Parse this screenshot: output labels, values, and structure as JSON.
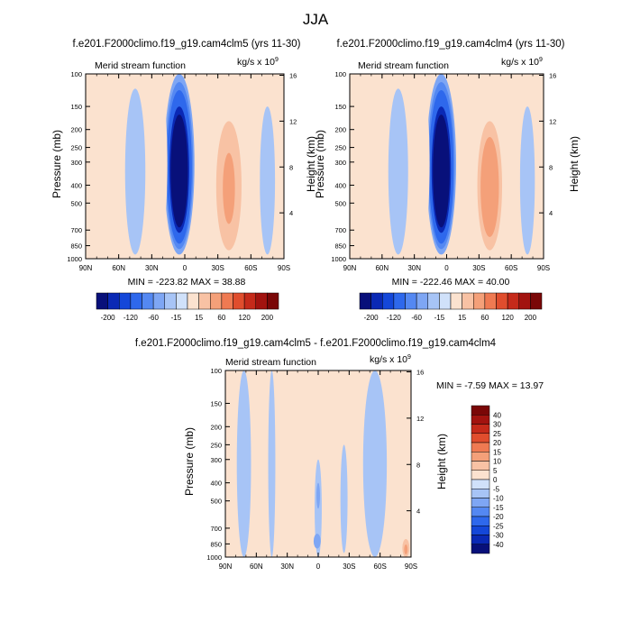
{
  "title": "JJA",
  "colors": {
    "neg": [
      "#08107a",
      "#0a29b5",
      "#1447d9",
      "#2e68ec",
      "#5488f2",
      "#7ea6f4",
      "#a7c4f6",
      "#d0e1fa"
    ],
    "pos": [
      "#fbe2cf",
      "#f8c2a4",
      "#f4a079",
      "#ef7a52",
      "#e04d2d",
      "#c52a1a",
      "#a2130f",
      "#7a0707"
    ],
    "diff_neg": [
      "#08107a",
      "#0a29b5",
      "#1447d9",
      "#2e68ec",
      "#5488f2",
      "#7ea6f4",
      "#a7c4f6",
      "#d0e1fa"
    ],
    "diff_pos": [
      "#fbe2cf",
      "#f8c2a4",
      "#f4a079",
      "#ef7a52",
      "#e04d2d",
      "#c52a1a",
      "#a2130f",
      "#7a0707"
    ]
  },
  "chart_data": [
    {
      "id": "panel-clm5",
      "type": "heatmap",
      "title": "f.e201.F2000climo.f19_g19.cam4clm5 (yrs 11-30)",
      "left_label": "Merid stream function",
      "units_text": "kg/s x 10",
      "units_exp": "9",
      "ylabel": "Pressure (mb)",
      "y2label": "Height (km)",
      "x_ticks": [
        "90N",
        "60N",
        "30N",
        "0",
        "30S",
        "60S",
        "90S"
      ],
      "y_ticks": [
        "100",
        "150",
        "200",
        "250",
        "300",
        "400",
        "500",
        "700",
        "850",
        "1000"
      ],
      "y_tick_values": [
        100,
        150,
        200,
        250,
        300,
        400,
        500,
        700,
        850,
        1000
      ],
      "y2_ticks": [
        "16",
        "12",
        "8",
        "4"
      ],
      "y2_tick_values": [
        16,
        12,
        8,
        4
      ],
      "xlim": [
        -90,
        90
      ],
      "ylim_pressure": [
        100,
        1000
      ],
      "min": -223.82,
      "max": 38.88,
      "stats_text": "MIN = -223.82  MAX = 38.88",
      "colorbar_labels": [
        "-200",
        "-120",
        "-60",
        "-15",
        "15",
        "60",
        "120",
        "200"
      ],
      "features": [
        {
          "type": "cell",
          "lat": 5,
          "p_top": 100,
          "p_bot": 950,
          "value": -223.8,
          "half_width": 12
        },
        {
          "type": "cell",
          "lat": -40,
          "p_top": 180,
          "p_bot": 900,
          "value": 38.9,
          "half_width": 10
        },
        {
          "type": "cell",
          "lat": 45,
          "p_top": 120,
          "p_bot": 950,
          "value": -8,
          "half_width": 8
        },
        {
          "type": "cell",
          "lat": -75,
          "p_top": 150,
          "p_bot": 950,
          "value": -6,
          "half_width": 6
        },
        {
          "type": "cell",
          "lat": 25,
          "p_top": 100,
          "p_bot": 950,
          "value": 6,
          "half_width": 8
        },
        {
          "type": "cell",
          "lat": -60,
          "p_top": 120,
          "p_bot": 1000,
          "value": 5,
          "half_width": 7
        }
      ],
      "background_value": 3
    },
    {
      "id": "panel-clm4",
      "type": "heatmap",
      "title": "f.e201.F2000climo.f19_g19.cam4clm4 (yrs 11-30)",
      "left_label": "Merid stream function",
      "units_text": "kg/s x 10",
      "units_exp": "9",
      "ylabel": "Pressure (mb)",
      "y2label": "Height (km)",
      "x_ticks": [
        "90N",
        "60N",
        "30N",
        "0",
        "30S",
        "60S",
        "90S"
      ],
      "y_ticks": [
        "100",
        "150",
        "200",
        "250",
        "300",
        "400",
        "500",
        "700",
        "850",
        "1000"
      ],
      "y_tick_values": [
        100,
        150,
        200,
        250,
        300,
        400,
        500,
        700,
        850,
        1000
      ],
      "y2_ticks": [
        "16",
        "12",
        "8",
        "4"
      ],
      "y2_tick_values": [
        16,
        12,
        8,
        4
      ],
      "xlim": [
        -90,
        90
      ],
      "ylim_pressure": [
        100,
        1000
      ],
      "min": -222.46,
      "max": 40.0,
      "stats_text": "MIN = -222.46  MAX = 40.00",
      "colorbar_labels": [
        "-200",
        "-120",
        "-60",
        "-15",
        "15",
        "60",
        "120",
        "200"
      ],
      "features": [
        {
          "type": "cell",
          "lat": 5,
          "p_top": 100,
          "p_bot": 950,
          "value": -222.5,
          "half_width": 12
        },
        {
          "type": "cell",
          "lat": -40,
          "p_top": 180,
          "p_bot": 900,
          "value": 40.0,
          "half_width": 10
        },
        {
          "type": "cell",
          "lat": 45,
          "p_top": 120,
          "p_bot": 950,
          "value": -8,
          "half_width": 8
        },
        {
          "type": "cell",
          "lat": -75,
          "p_top": 150,
          "p_bot": 950,
          "value": -6,
          "half_width": 6
        },
        {
          "type": "cell",
          "lat": 25,
          "p_top": 100,
          "p_bot": 950,
          "value": 6,
          "half_width": 8
        },
        {
          "type": "cell",
          "lat": -60,
          "p_top": 120,
          "p_bot": 1000,
          "value": 5,
          "half_width": 7
        }
      ],
      "background_value": 3
    },
    {
      "id": "panel-diff",
      "type": "heatmap",
      "title": "f.e201.F2000climo.f19_g19.cam4clm5 - f.e201.F2000climo.f19_g19.cam4clm4",
      "left_label": "Merid stream function",
      "units_text": "kg/s x 10",
      "units_exp": "9",
      "ylabel": "Pressure (mb)",
      "y2label": "Height (km)",
      "x_ticks": [
        "90N",
        "60N",
        "30N",
        "0",
        "30S",
        "60S",
        "90S"
      ],
      "y_ticks": [
        "100",
        "150",
        "200",
        "250",
        "300",
        "400",
        "500",
        "700",
        "850",
        "1000"
      ],
      "y_tick_values": [
        100,
        150,
        200,
        250,
        300,
        400,
        500,
        700,
        850,
        1000
      ],
      "y2_ticks": [
        "16",
        "12",
        "8",
        "4"
      ],
      "y2_tick_values": [
        16,
        12,
        8,
        4
      ],
      "xlim": [
        -90,
        90
      ],
      "ylim_pressure": [
        100,
        1000
      ],
      "min": -7.59,
      "max": 13.97,
      "stats_text": "MIN = -7.59  MAX = 13.97",
      "colorbar_labels": [
        "40",
        "30",
        "25",
        "20",
        "15",
        "10",
        "5",
        "0",
        "-5",
        "-10",
        "-15",
        "-20",
        "-25",
        "-30",
        "-40"
      ],
      "features": [
        {
          "type": "cell",
          "lat": 72,
          "p_top": 100,
          "p_bot": 1000,
          "value": -2,
          "half_width": 6
        },
        {
          "type": "cell",
          "lat": 45,
          "p_top": 100,
          "p_bot": 1000,
          "value": -2,
          "half_width": 3
        },
        {
          "type": "cell",
          "lat": 0,
          "p_top": 300,
          "p_bot": 1000,
          "value": -2,
          "half_width": 3
        },
        {
          "type": "cell",
          "lat": -55,
          "p_top": 100,
          "p_bot": 1000,
          "value": -2,
          "half_width": 10
        },
        {
          "type": "cell",
          "lat": 0,
          "p_top": 400,
          "p_bot": 550,
          "value": -7,
          "half_width": 1.5
        },
        {
          "type": "cell",
          "lat": -25,
          "p_top": 250,
          "p_bot": 950,
          "value": -2,
          "half_width": 3
        },
        {
          "type": "cell",
          "lat": 1,
          "p_top": 750,
          "p_bot": 900,
          "value": -7,
          "half_width": 3
        },
        {
          "type": "cell",
          "lat": -85,
          "p_top": 800,
          "p_bot": 1000,
          "value": 13.97,
          "half_width": 3
        }
      ],
      "background_value": 2
    }
  ]
}
